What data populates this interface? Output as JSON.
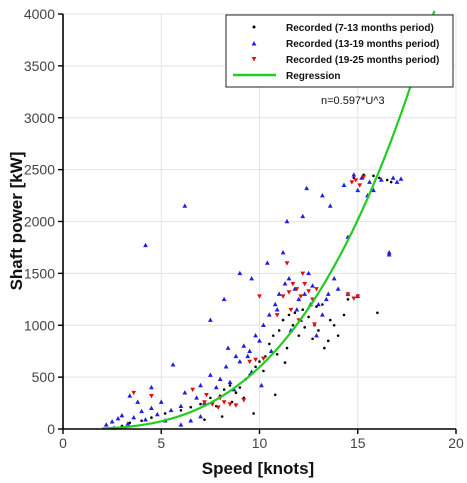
{
  "chart_data": {
    "type": "scatter",
    "xlabel": "Speed [knots]",
    "ylabel": "Shaft power [kW]",
    "xlim": [
      0,
      20
    ],
    "ylim": [
      0,
      4000
    ],
    "xticks": [
      0,
      5,
      10,
      15,
      20
    ],
    "yticks": [
      0,
      500,
      1000,
      1500,
      2000,
      2500,
      3000,
      3500,
      4000
    ],
    "grid": true,
    "legend_position": "top-right",
    "annotation": "n=0.597*U^3",
    "series": [
      {
        "name": "Recorded (7-13 months period)",
        "marker": "dot",
        "color": "#000000",
        "points": [
          [
            3.0,
            30
          ],
          [
            3.4,
            60
          ],
          [
            4.0,
            80
          ],
          [
            4.5,
            110
          ],
          [
            5.2,
            150
          ],
          [
            6.0,
            180
          ],
          [
            6.5,
            210
          ],
          [
            7.0,
            240
          ],
          [
            7.5,
            300
          ],
          [
            8.0,
            320
          ],
          [
            8.2,
            380
          ],
          [
            8.5,
            420
          ],
          [
            8.8,
            350
          ],
          [
            9.0,
            400
          ],
          [
            9.2,
            300
          ],
          [
            9.5,
            520
          ],
          [
            9.8,
            600
          ],
          [
            10.0,
            650
          ],
          [
            10.3,
            700
          ],
          [
            10.5,
            820
          ],
          [
            10.7,
            900
          ],
          [
            11.0,
            950
          ],
          [
            11.2,
            1050
          ],
          [
            11.5,
            1100
          ],
          [
            11.7,
            1000
          ],
          [
            12.0,
            900
          ],
          [
            12.2,
            1150
          ],
          [
            12.5,
            1080
          ],
          [
            12.8,
            1000
          ],
          [
            13.0,
            950
          ],
          [
            13.2,
            1200
          ],
          [
            13.5,
            850
          ],
          [
            13.8,
            1000
          ],
          [
            14.0,
            900
          ],
          [
            14.3,
            1100
          ],
          [
            12.3,
            980
          ],
          [
            11.8,
            1120
          ],
          [
            12.7,
            870
          ],
          [
            13.6,
            1050
          ],
          [
            11.4,
            780
          ],
          [
            10.9,
            720
          ],
          [
            14.8,
            2420
          ],
          [
            15.3,
            2450
          ],
          [
            15.8,
            2440
          ],
          [
            16.1,
            2420
          ],
          [
            16.5,
            2400
          ],
          [
            16.7,
            2380
          ],
          [
            9.3,
            480
          ],
          [
            8.6,
            260
          ],
          [
            7.8,
            220
          ],
          [
            10.2,
            560
          ],
          [
            12.9,
            1180
          ],
          [
            13.3,
            780
          ],
          [
            14.5,
            1250
          ],
          [
            16.0,
            1120
          ],
          [
            9.7,
            150
          ],
          [
            8.1,
            120
          ],
          [
            7.2,
            90
          ],
          [
            10.8,
            330
          ],
          [
            11.3,
            640
          ]
        ]
      },
      {
        "name": "Recorded (13-19 months period)",
        "marker": "triangle-up",
        "color": "#1f1fe0",
        "points": [
          [
            2.2,
            40
          ],
          [
            2.5,
            70
          ],
          [
            2.8,
            100
          ],
          [
            3.0,
            130
          ],
          [
            3.3,
            50
          ],
          [
            3.6,
            110
          ],
          [
            4.0,
            170
          ],
          [
            4.2,
            90
          ],
          [
            4.5,
            200
          ],
          [
            4.8,
            140
          ],
          [
            5.0,
            260
          ],
          [
            5.5,
            180
          ],
          [
            6.0,
            220
          ],
          [
            6.2,
            350
          ],
          [
            6.8,
            300
          ],
          [
            7.0,
            420
          ],
          [
            7.2,
            250
          ],
          [
            7.5,
            520
          ],
          [
            8.0,
            480
          ],
          [
            8.3,
            600
          ],
          [
            8.5,
            450
          ],
          [
            8.8,
            700
          ],
          [
            9.0,
            650
          ],
          [
            9.2,
            800
          ],
          [
            9.5,
            750
          ],
          [
            9.8,
            900
          ],
          [
            10.0,
            850
          ],
          [
            10.2,
            1000
          ],
          [
            10.5,
            1100
          ],
          [
            10.8,
            1200
          ],
          [
            11.0,
            1300
          ],
          [
            11.3,
            1400
          ],
          [
            11.5,
            1450
          ],
          [
            11.8,
            1350
          ],
          [
            12.0,
            1250
          ],
          [
            12.3,
            1300
          ],
          [
            12.5,
            1500
          ],
          [
            12.7,
            1380
          ],
          [
            13.0,
            1200
          ],
          [
            13.2,
            1100
          ],
          [
            13.5,
            1300
          ],
          [
            13.8,
            1450
          ],
          [
            14.0,
            1350
          ],
          [
            14.5,
            1300
          ],
          [
            15.0,
            1280
          ],
          [
            10.6,
            750
          ],
          [
            11.6,
            950
          ],
          [
            12.1,
            1050
          ],
          [
            9.6,
            550
          ],
          [
            8.7,
            380
          ],
          [
            7.8,
            400
          ],
          [
            7.0,
            120
          ],
          [
            6.5,
            80
          ],
          [
            4.2,
            1770
          ],
          [
            7.5,
            1050
          ],
          [
            8.2,
            1250
          ],
          [
            9.0,
            1500
          ],
          [
            9.6,
            1450
          ],
          [
            10.4,
            1600
          ],
          [
            11.2,
            1700
          ],
          [
            11.4,
            2000
          ],
          [
            12.2,
            2050
          ],
          [
            16.6,
            1700
          ],
          [
            16.6,
            1680
          ],
          [
            13.2,
            2250
          ],
          [
            14.3,
            2350
          ],
          [
            15.0,
            2300
          ],
          [
            15.5,
            2250
          ],
          [
            15.8,
            2300
          ],
          [
            14.8,
            2450
          ],
          [
            15.2,
            2420
          ],
          [
            15.6,
            2380
          ],
          [
            16.2,
            2400
          ],
          [
            16.8,
            2420
          ],
          [
            17.0,
            2380
          ],
          [
            17.2,
            2410
          ],
          [
            12.4,
            2320
          ],
          [
            13.6,
            2150
          ],
          [
            14.5,
            1850
          ],
          [
            6.2,
            2150
          ],
          [
            8.4,
            780
          ],
          [
            9.4,
            700
          ],
          [
            10.1,
            420
          ],
          [
            5.6,
            620
          ],
          [
            4.5,
            400
          ],
          [
            3.4,
            320
          ],
          [
            2.6,
            10
          ],
          [
            3.8,
            260
          ],
          [
            5.2,
            80
          ],
          [
            6.0,
            40
          ],
          [
            10.9,
            1150
          ],
          [
            12.9,
            900
          ],
          [
            11.9,
            1150
          ],
          [
            12.6,
            1200
          ],
          [
            13.4,
            1250
          ]
        ]
      },
      {
        "name": "Recorded (19-25 months period)",
        "marker": "triangle-down",
        "color": "#dd1111",
        "points": [
          [
            3.6,
            350
          ],
          [
            4.5,
            320
          ],
          [
            6.6,
            380
          ],
          [
            7.2,
            260
          ],
          [
            7.6,
            240
          ],
          [
            7.9,
            210
          ],
          [
            8.2,
            260
          ],
          [
            8.5,
            240
          ],
          [
            8.8,
            230
          ],
          [
            9.2,
            280
          ],
          [
            7.3,
            330
          ],
          [
            8.0,
            300
          ],
          [
            9.5,
            650
          ],
          [
            9.8,
            670
          ],
          [
            10.2,
            680
          ],
          [
            10.9,
            1100
          ],
          [
            11.2,
            1280
          ],
          [
            11.5,
            1320
          ],
          [
            11.7,
            1400
          ],
          [
            11.9,
            1350
          ],
          [
            12.1,
            1280
          ],
          [
            12.3,
            1400
          ],
          [
            12.5,
            1330
          ],
          [
            12.7,
            1250
          ],
          [
            12.9,
            1350
          ],
          [
            11.6,
            1150
          ],
          [
            12.2,
            1500
          ],
          [
            11.4,
            1600
          ],
          [
            12.0,
            1050
          ],
          [
            12.8,
            1010
          ],
          [
            14.5,
            1300
          ],
          [
            14.8,
            1260
          ],
          [
            15.0,
            1280
          ],
          [
            14.7,
            2380
          ],
          [
            14.9,
            2400
          ],
          [
            15.1,
            2350
          ],
          [
            15.3,
            2430
          ],
          [
            10.0,
            1280
          ]
        ]
      },
      {
        "name": "Regression",
        "marker": "line",
        "color": "#22cc22",
        "formula": "n=0.597*U^3",
        "coefficient": 0.597,
        "x_range": [
          2,
          18.9
        ]
      }
    ]
  }
}
